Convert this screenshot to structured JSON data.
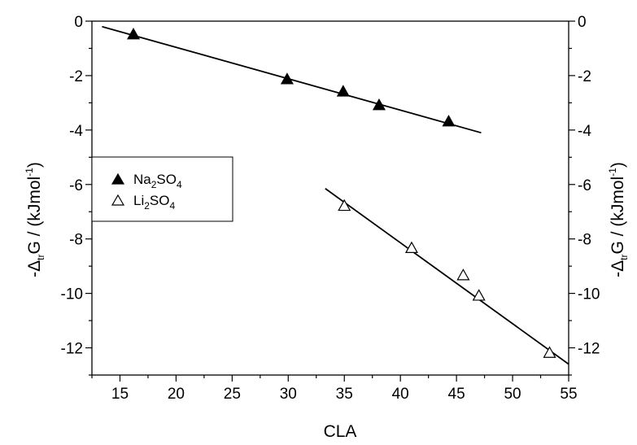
{
  "chart_data": {
    "type": "scatter",
    "xlabel": "CLA",
    "ylabel": {
      "prefix": "-Δ",
      "sub": "tr",
      "main": "G / (kJmol",
      "sup": "-1",
      "suffix": ")"
    },
    "xlim": [
      12.5,
      55
    ],
    "ylim": [
      -13,
      0
    ],
    "xticks": [
      15,
      20,
      25,
      30,
      35,
      40,
      45,
      50,
      55
    ],
    "yticks": [
      0,
      -2,
      -4,
      -6,
      -8,
      -10,
      -12
    ],
    "legend_position": "left-middle",
    "series": [
      {
        "name": {
          "a": "Na",
          "a_sub": "2",
          "b": "SO",
          "b_sub": "4"
        },
        "marker": "filled-triangle",
        "points": [
          [
            16.2,
            -0.5
          ],
          [
            29.9,
            -2.15
          ],
          [
            34.9,
            -2.6
          ],
          [
            38.1,
            -3.1
          ],
          [
            44.3,
            -3.7
          ]
        ],
        "fit": [
          [
            13.4,
            -0.2
          ],
          [
            47.2,
            -4.1
          ]
        ]
      },
      {
        "name": {
          "a": "Li",
          "a_sub": "2",
          "b": "SO",
          "b_sub": "4"
        },
        "marker": "open-triangle",
        "points": [
          [
            35.0,
            -6.8
          ],
          [
            41.0,
            -8.35
          ],
          [
            45.6,
            -9.35
          ],
          [
            47.0,
            -10.1
          ],
          [
            53.3,
            -12.2
          ]
        ],
        "fit": [
          [
            33.3,
            -6.15
          ],
          [
            55.0,
            -12.6
          ]
        ]
      }
    ]
  }
}
